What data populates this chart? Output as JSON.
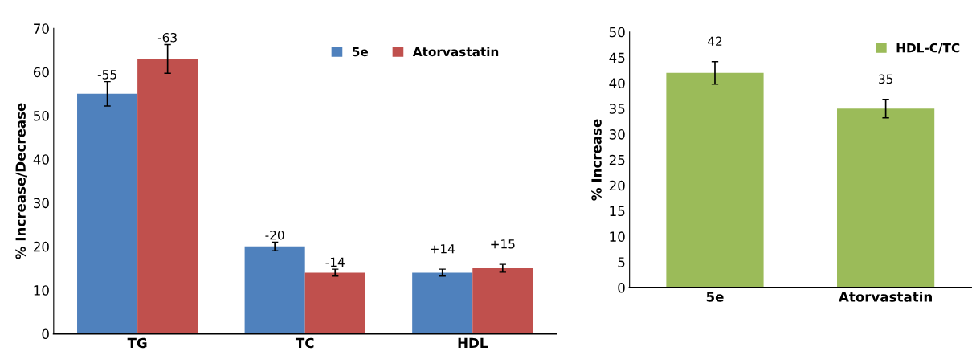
{
  "chart_data": [
    {
      "type": "bar",
      "ylabel": "% Increase/Decrease",
      "categories": [
        "TG",
        "TC",
        "HDL"
      ],
      "ylim": [
        0,
        70
      ],
      "yticks": [
        0,
        10,
        20,
        30,
        40,
        50,
        60,
        70
      ],
      "grid": false,
      "legend": "top",
      "series": [
        {
          "name": "5e",
          "color": "#4f81bd",
          "values": [
            55,
            20,
            14
          ],
          "errors": [
            2.8,
            1,
            0.8
          ],
          "value_labels": [
            null,
            null,
            "+14"
          ]
        },
        {
          "name": "Atorvastatin",
          "color": "#c0504d",
          "values": [
            63,
            14,
            15
          ],
          "errors": [
            3.3,
            0.8,
            0.9
          ],
          "value_labels": [
            null,
            null,
            "+15"
          ]
        }
      ],
      "annotations": [
        {
          "text": "-55",
          "x": "TG",
          "y": 55
        },
        {
          "text": "-63",
          "x": "TG",
          "y": 63
        },
        {
          "text": "-20",
          "x": "TC",
          "y": 20
        },
        {
          "text": "-14",
          "x": "TC",
          "y": 14
        }
      ]
    },
    {
      "type": "bar",
      "ylabel": "% Increase",
      "categories": [
        "5e",
        "Atorvastatin"
      ],
      "ylim": [
        0,
        50
      ],
      "yticks": [
        0,
        5,
        10,
        15,
        20,
        25,
        30,
        35,
        40,
        45,
        50
      ],
      "grid": false,
      "legend": "top right",
      "data_labels": true,
      "series": [
        {
          "name": "HDL-C/TC",
          "color": "#9bbb59",
          "values": [
            42,
            35
          ],
          "errors": [
            2.2,
            1.8
          ]
        }
      ]
    }
  ]
}
